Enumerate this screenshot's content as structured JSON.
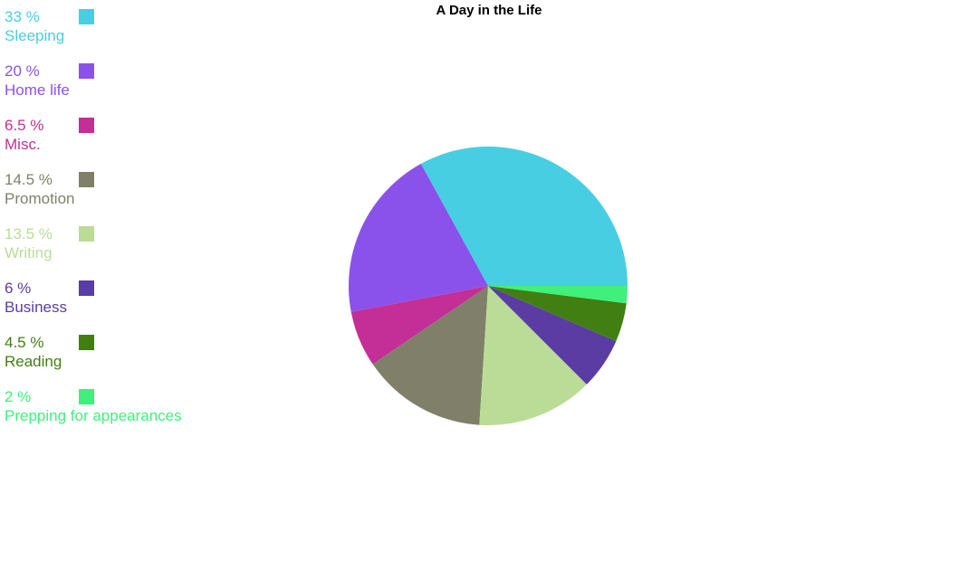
{
  "title": "A Day in the Life",
  "legend": {
    "items": [
      {
        "percent": "33 %",
        "label": "Sleeping",
        "color": "#47CEE2"
      },
      {
        "percent": "20 %",
        "label": "Home life",
        "color": "#8B51EB"
      },
      {
        "percent": "6.5 %",
        "label": "Misc.",
        "color": "#C32F96"
      },
      {
        "percent": "14.5 %",
        "label": "Promotion",
        "color": "#80806A"
      },
      {
        "percent": "13.5 %",
        "label": "Writing",
        "color": "#BBDC96"
      },
      {
        "percent": "6 %",
        "label": "Business",
        "color": "#5B3CA3"
      },
      {
        "percent": "4.5 %",
        "label": "Reading",
        "color": "#417F12"
      },
      {
        "percent": "2 %",
        "label": "Prepping for appearances",
        "color": "#3FF07D"
      }
    ]
  },
  "chart_data": {
    "type": "pie",
    "title": "A Day in the Life",
    "categories": [
      "Sleeping",
      "Home life",
      "Misc.",
      "Promotion",
      "Writing",
      "Business",
      "Reading",
      "Prepping for appearances"
    ],
    "values": [
      33,
      20,
      6.5,
      14.5,
      13.5,
      6,
      4.5,
      2
    ],
    "colors": [
      "#47CEE2",
      "#8B51EB",
      "#C32F96",
      "#80806A",
      "#BBDC96",
      "#5B3CA3",
      "#417F12",
      "#3FF07D"
    ],
    "unit": "%",
    "start_angle_deg": 0,
    "direction": "counterclockwise",
    "legend_position": "top-left",
    "background": "#ffffff"
  }
}
